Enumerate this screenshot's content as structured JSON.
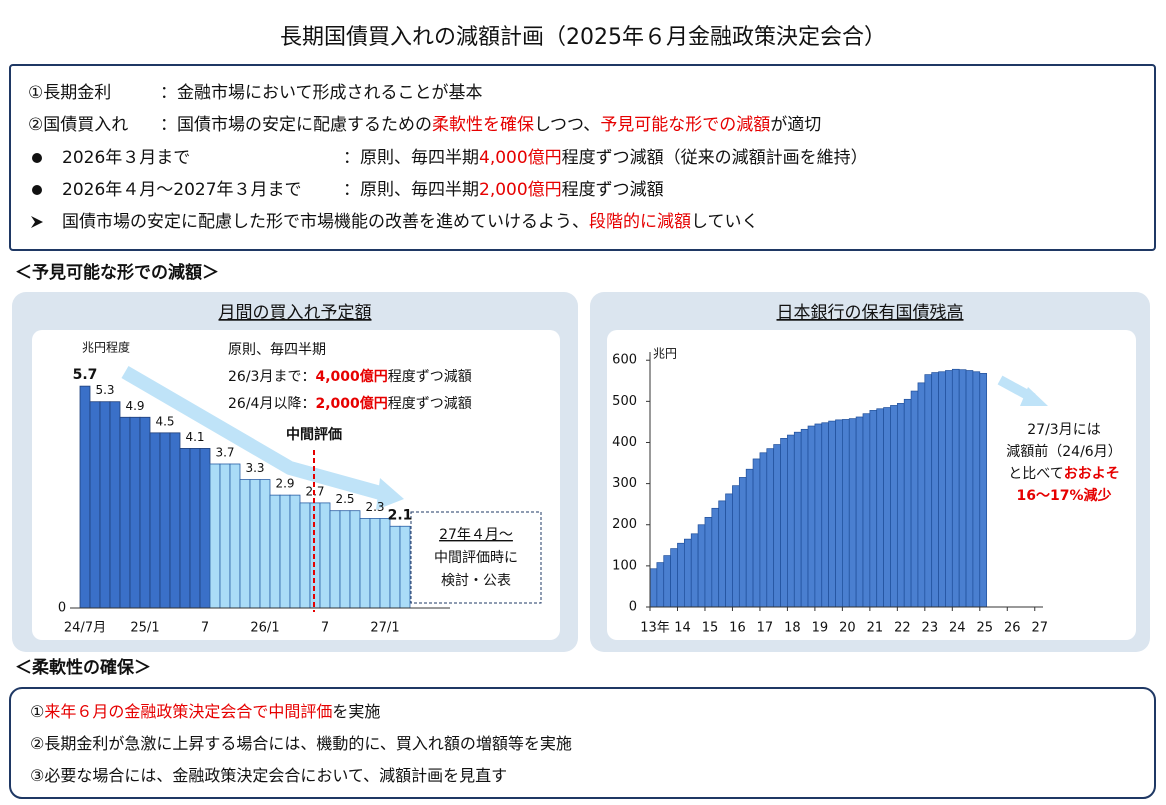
{
  "title": "長期国債買入れの減額計画（2025年６月金融政策決定会合）",
  "summary": [
    {
      "label": "①長期金利",
      "text": [
        {
          "text": "：金融市場において形成されることが基本"
        }
      ]
    },
    {
      "label": "②国債買入れ",
      "text": [
        {
          "text": "：国債市場の安定に配慮するための"
        },
        {
          "text": "柔軟性を確保",
          "color": "#e60000"
        },
        {
          "text": "しつつ、"
        },
        {
          "text": "予見可能な形での減額",
          "color": "#e60000"
        },
        {
          "text": "が適切"
        }
      ]
    },
    {
      "label": "2026年３月まで",
      "text": [
        {
          "text": "：原則、毎四半期"
        },
        {
          "text": "4,000億円",
          "color": "#e60000"
        },
        {
          "text": "程度ずつ減額（従来の減額計画を維持）"
        }
      ]
    },
    {
      "label": "2026年４月～2027年３月まで",
      "text": [
        {
          "text": "：原則、毎四半期"
        },
        {
          "text": "2,000億円",
          "color": "#e60000"
        },
        {
          "text": "程度ずつ減額"
        }
      ]
    },
    {
      "text": [
        {
          "text": "国債市場の安定に配慮した形で市場機能の改善を進めていけるよう、"
        },
        {
          "text": "段階的に減額",
          "color": "#e60000"
        },
        {
          "text": "していく"
        }
      ]
    }
  ],
  "section1": "＜予見可能な形での減額＞",
  "section2": "＜柔軟性の確保＞",
  "flexibility": [
    [
      {
        "text": "①"
      },
      {
        "text": "来年６月の金融政策決定会合で中間評価",
        "color": "#e60000"
      },
      {
        "text": "を実施"
      }
    ],
    [
      {
        "text": "②長期金利が急激に上昇する場合には、機動的に、買入れ額の増額等を実施"
      }
    ],
    [
      {
        "text": "③必要な場合には、金融政策決定会合において、減額計画を見直す"
      }
    ]
  ],
  "chart_data": [
    {
      "type": "bar",
      "title": "月間の買入れ予定額",
      "unit_label": "兆円程度",
      "categories": [
        "24/7月",
        null,
        null,
        null,
        null,
        null,
        "25/1",
        null,
        null,
        null,
        null,
        null,
        "7",
        null,
        null,
        null,
        null,
        null,
        "26/1",
        null,
        null,
        null,
        null,
        null,
        "7",
        null,
        null,
        null,
        null,
        null,
        "27/1",
        null,
        null
      ],
      "series": [
        {
          "color": "#3a70c8",
          "values": [
            5.7,
            5.3,
            5.3,
            5.3,
            4.9,
            4.9,
            4.9,
            4.5,
            4.5,
            4.5,
            4.1,
            4.1,
            4.1,
            null,
            null,
            null,
            null,
            null,
            null,
            null,
            null,
            null,
            null,
            null,
            null,
            null,
            null,
            null,
            null,
            null,
            null,
            null,
            null
          ]
        },
        {
          "color": "#aadcf7",
          "values": [
            null,
            null,
            null,
            null,
            null,
            null,
            null,
            null,
            null,
            null,
            null,
            null,
            null,
            3.7,
            3.7,
            3.7,
            3.3,
            3.3,
            3.3,
            2.9,
            2.9,
            2.9,
            2.7,
            2.7,
            2.7,
            2.5,
            2.5,
            2.5,
            2.3,
            2.3,
            2.3,
            2.1,
            2.1
          ]
        }
      ],
      "ylim": [
        0,
        6.5
      ],
      "yticks": [
        0
      ],
      "label_highlight_color": "#e60000",
      "notes": [
        [
          {
            "text": "原則、毎四半期"
          }
        ],
        [
          {
            "text": "26/3月まで："
          },
          {
            "text": "4,000億円",
            "color": "#e60000"
          },
          {
            "text": "程度ずつ減額"
          }
        ],
        [
          {
            "text": "26/4月以降："
          },
          {
            "text": "2,000億円",
            "color": "#e60000"
          },
          {
            "text": "程度ずつ減額"
          }
        ]
      ],
      "midterm_label": "中間評価",
      "box": [
        "27年４月～",
        "中間評価時に",
        "検討・公表"
      ]
    },
    {
      "type": "bar",
      "title": "日本銀行の保有国債残高",
      "unit_label": "兆円",
      "color": "#4a7fd0",
      "x": [
        13,
        13.25,
        13.5,
        13.75,
        14,
        14.25,
        14.5,
        14.75,
        15,
        15.25,
        15.5,
        15.75,
        16,
        16.25,
        16.5,
        16.75,
        17,
        17.25,
        17.5,
        17.75,
        18,
        18.25,
        18.5,
        18.75,
        19,
        19.25,
        19.5,
        19.75,
        20,
        20.25,
        20.5,
        20.75,
        21,
        21.25,
        21.5,
        21.75,
        22,
        22.25,
        22.5,
        22.75,
        23,
        23.25,
        23.5,
        23.75,
        24,
        24.25,
        24.5,
        24.75,
        25
      ],
      "values": [
        93,
        108,
        125,
        142,
        155,
        165,
        178,
        200,
        218,
        240,
        258,
        275,
        295,
        315,
        335,
        360,
        375,
        385,
        395,
        410,
        418,
        425,
        432,
        440,
        445,
        448,
        452,
        455,
        456,
        458,
        462,
        470,
        478,
        482,
        485,
        490,
        495,
        505,
        525,
        545,
        565,
        570,
        572,
        575,
        578,
        577,
        575,
        572,
        568
      ],
      "xlim": [
        13,
        27.3
      ],
      "xticks": [
        {
          "value": 13,
          "label": "13年"
        },
        14,
        15,
        16,
        17,
        18,
        19,
        20,
        21,
        22,
        23,
        24,
        25,
        26,
        27
      ],
      "ylim": [
        0,
        620
      ],
      "yticks": [
        0,
        100,
        200,
        300,
        400,
        500,
        600
      ],
      "notes": [
        [
          {
            "text": "27/3月には"
          }
        ],
        [
          {
            "text": "減額前（24/6月）"
          }
        ],
        [
          {
            "text": "と比べて"
          },
          {
            "text": "おおよそ",
            "color": "#e60000"
          }
        ],
        [
          {
            "text": "16～17%減少",
            "color": "#e60000"
          }
        ]
      ]
    }
  ]
}
